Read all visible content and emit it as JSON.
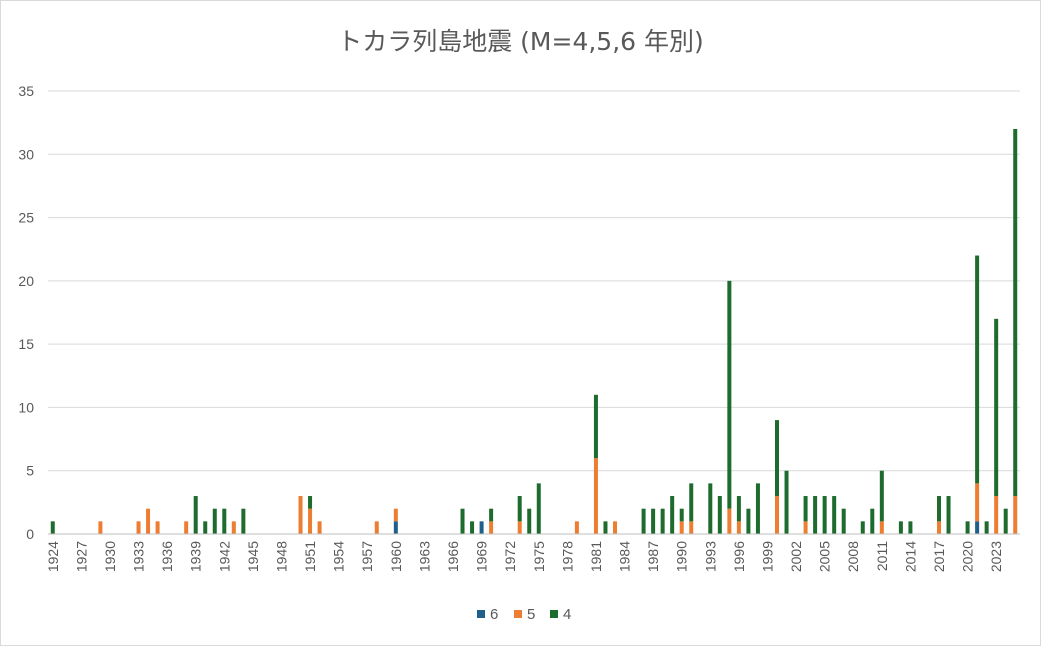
{
  "chart_data": {
    "type": "bar",
    "stacked": true,
    "title": "トカラ列島地震 (M=4,5,6 年別)",
    "xlabel": "",
    "ylabel": "",
    "ylim": [
      0,
      35
    ],
    "yticks": [
      0,
      5,
      10,
      15,
      20,
      25,
      30,
      35
    ],
    "grid": true,
    "legend_position": "bottom",
    "x_start": 1924,
    "x_end": 2025,
    "x_tick_labels": [
      "1924",
      "1927",
      "1930",
      "1933",
      "1936",
      "1939",
      "1942",
      "1945",
      "1948",
      "1951",
      "1954",
      "1957",
      "1960",
      "1963",
      "1966",
      "1969",
      "1972",
      "1975",
      "1978",
      "1981",
      "1984",
      "1987",
      "1990",
      "1993",
      "1996",
      "1999",
      "2002",
      "2005",
      "2008",
      "2011",
      "2014",
      "2017",
      "2020",
      "2023"
    ],
    "series": [
      {
        "name": "6",
        "color": "#1f5f8b",
        "points": [
          [
            1960,
            1
          ],
          [
            1969,
            1
          ],
          [
            2021,
            1
          ]
        ]
      },
      {
        "name": "5",
        "color": "#ed7d31",
        "points": [
          [
            1929,
            1
          ],
          [
            1933,
            1
          ],
          [
            1934,
            2
          ],
          [
            1935,
            1
          ],
          [
            1938,
            1
          ],
          [
            1943,
            1
          ],
          [
            1950,
            3
          ],
          [
            1951,
            2
          ],
          [
            1952,
            1
          ],
          [
            1958,
            1
          ],
          [
            1960,
            1
          ],
          [
            1970,
            1
          ],
          [
            1973,
            1
          ],
          [
            1979,
            1
          ],
          [
            1981,
            6
          ],
          [
            1983,
            1
          ],
          [
            1990,
            1
          ],
          [
            1991,
            1
          ],
          [
            1995,
            2
          ],
          [
            1996,
            1
          ],
          [
            2000,
            3
          ],
          [
            2003,
            1
          ],
          [
            2011,
            1
          ],
          [
            2017,
            1
          ],
          [
            2021,
            3
          ],
          [
            2023,
            3
          ],
          [
            2025,
            3
          ]
        ]
      },
      {
        "name": "4",
        "color": "#1e6b2e",
        "points": [
          [
            1924,
            1
          ],
          [
            1939,
            3
          ],
          [
            1940,
            1
          ],
          [
            1941,
            2
          ],
          [
            1942,
            2
          ],
          [
            1944,
            2
          ],
          [
            1951,
            1
          ],
          [
            1967,
            2
          ],
          [
            1968,
            1
          ],
          [
            1970,
            1
          ],
          [
            1973,
            2
          ],
          [
            1974,
            2
          ],
          [
            1975,
            4
          ],
          [
            1981,
            5
          ],
          [
            1982,
            1
          ],
          [
            1986,
            2
          ],
          [
            1987,
            2
          ],
          [
            1988,
            2
          ],
          [
            1989,
            3
          ],
          [
            1990,
            1
          ],
          [
            1991,
            3
          ],
          [
            1993,
            4
          ],
          [
            1994,
            3
          ],
          [
            1995,
            18
          ],
          [
            1996,
            2
          ],
          [
            1997,
            2
          ],
          [
            1998,
            4
          ],
          [
            2000,
            6
          ],
          [
            2001,
            5
          ],
          [
            2003,
            2
          ],
          [
            2004,
            3
          ],
          [
            2005,
            3
          ],
          [
            2006,
            3
          ],
          [
            2007,
            2
          ],
          [
            2009,
            1
          ],
          [
            2010,
            2
          ],
          [
            2011,
            4
          ],
          [
            2013,
            1
          ],
          [
            2014,
            1
          ],
          [
            2017,
            2
          ],
          [
            2018,
            3
          ],
          [
            2020,
            1
          ],
          [
            2021,
            18
          ],
          [
            2022,
            1
          ],
          [
            2023,
            14
          ],
          [
            2024,
            2
          ],
          [
            2025,
            29
          ]
        ]
      }
    ]
  }
}
